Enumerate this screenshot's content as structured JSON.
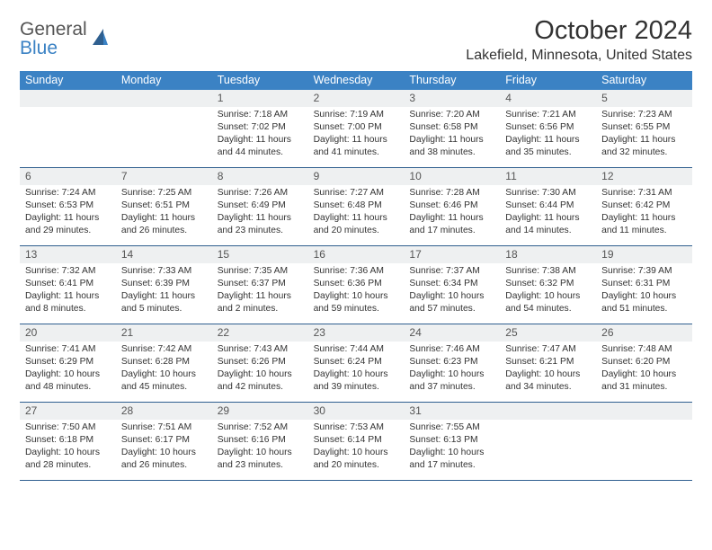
{
  "logo": {
    "line1": "General",
    "line2": "Blue"
  },
  "title": "October 2024",
  "location": "Lakefield, Minnesota, United States",
  "colors": {
    "header_bg": "#3b82c4",
    "header_text": "#ffffff",
    "daynum_bg": "#eef0f1",
    "week_border": "#2f5f8f",
    "body_text": "#333333"
  },
  "weekdays": [
    "Sunday",
    "Monday",
    "Tuesday",
    "Wednesday",
    "Thursday",
    "Friday",
    "Saturday"
  ],
  "days": [
    {
      "n": "",
      "empty": true
    },
    {
      "n": "",
      "empty": true
    },
    {
      "n": "1",
      "sr": "7:18 AM",
      "ss": "7:02 PM",
      "dl": "11 hours and 44 minutes."
    },
    {
      "n": "2",
      "sr": "7:19 AM",
      "ss": "7:00 PM",
      "dl": "11 hours and 41 minutes."
    },
    {
      "n": "3",
      "sr": "7:20 AM",
      "ss": "6:58 PM",
      "dl": "11 hours and 38 minutes."
    },
    {
      "n": "4",
      "sr": "7:21 AM",
      "ss": "6:56 PM",
      "dl": "11 hours and 35 minutes."
    },
    {
      "n": "5",
      "sr": "7:23 AM",
      "ss": "6:55 PM",
      "dl": "11 hours and 32 minutes."
    },
    {
      "n": "6",
      "sr": "7:24 AM",
      "ss": "6:53 PM",
      "dl": "11 hours and 29 minutes."
    },
    {
      "n": "7",
      "sr": "7:25 AM",
      "ss": "6:51 PM",
      "dl": "11 hours and 26 minutes."
    },
    {
      "n": "8",
      "sr": "7:26 AM",
      "ss": "6:49 PM",
      "dl": "11 hours and 23 minutes."
    },
    {
      "n": "9",
      "sr": "7:27 AM",
      "ss": "6:48 PM",
      "dl": "11 hours and 20 minutes."
    },
    {
      "n": "10",
      "sr": "7:28 AM",
      "ss": "6:46 PM",
      "dl": "11 hours and 17 minutes."
    },
    {
      "n": "11",
      "sr": "7:30 AM",
      "ss": "6:44 PM",
      "dl": "11 hours and 14 minutes."
    },
    {
      "n": "12",
      "sr": "7:31 AM",
      "ss": "6:42 PM",
      "dl": "11 hours and 11 minutes."
    },
    {
      "n": "13",
      "sr": "7:32 AM",
      "ss": "6:41 PM",
      "dl": "11 hours and 8 minutes."
    },
    {
      "n": "14",
      "sr": "7:33 AM",
      "ss": "6:39 PM",
      "dl": "11 hours and 5 minutes."
    },
    {
      "n": "15",
      "sr": "7:35 AM",
      "ss": "6:37 PM",
      "dl": "11 hours and 2 minutes."
    },
    {
      "n": "16",
      "sr": "7:36 AM",
      "ss": "6:36 PM",
      "dl": "10 hours and 59 minutes."
    },
    {
      "n": "17",
      "sr": "7:37 AM",
      "ss": "6:34 PM",
      "dl": "10 hours and 57 minutes."
    },
    {
      "n": "18",
      "sr": "7:38 AM",
      "ss": "6:32 PM",
      "dl": "10 hours and 54 minutes."
    },
    {
      "n": "19",
      "sr": "7:39 AM",
      "ss": "6:31 PM",
      "dl": "10 hours and 51 minutes."
    },
    {
      "n": "20",
      "sr": "7:41 AM",
      "ss": "6:29 PM",
      "dl": "10 hours and 48 minutes."
    },
    {
      "n": "21",
      "sr": "7:42 AM",
      "ss": "6:28 PM",
      "dl": "10 hours and 45 minutes."
    },
    {
      "n": "22",
      "sr": "7:43 AM",
      "ss": "6:26 PM",
      "dl": "10 hours and 42 minutes."
    },
    {
      "n": "23",
      "sr": "7:44 AM",
      "ss": "6:24 PM",
      "dl": "10 hours and 39 minutes."
    },
    {
      "n": "24",
      "sr": "7:46 AM",
      "ss": "6:23 PM",
      "dl": "10 hours and 37 minutes."
    },
    {
      "n": "25",
      "sr": "7:47 AM",
      "ss": "6:21 PM",
      "dl": "10 hours and 34 minutes."
    },
    {
      "n": "26",
      "sr": "7:48 AM",
      "ss": "6:20 PM",
      "dl": "10 hours and 31 minutes."
    },
    {
      "n": "27",
      "sr": "7:50 AM",
      "ss": "6:18 PM",
      "dl": "10 hours and 28 minutes."
    },
    {
      "n": "28",
      "sr": "7:51 AM",
      "ss": "6:17 PM",
      "dl": "10 hours and 26 minutes."
    },
    {
      "n": "29",
      "sr": "7:52 AM",
      "ss": "6:16 PM",
      "dl": "10 hours and 23 minutes."
    },
    {
      "n": "30",
      "sr": "7:53 AM",
      "ss": "6:14 PM",
      "dl": "10 hours and 20 minutes."
    },
    {
      "n": "31",
      "sr": "7:55 AM",
      "ss": "6:13 PM",
      "dl": "10 hours and 17 minutes."
    },
    {
      "n": "",
      "empty": true
    },
    {
      "n": "",
      "empty": true
    }
  ]
}
